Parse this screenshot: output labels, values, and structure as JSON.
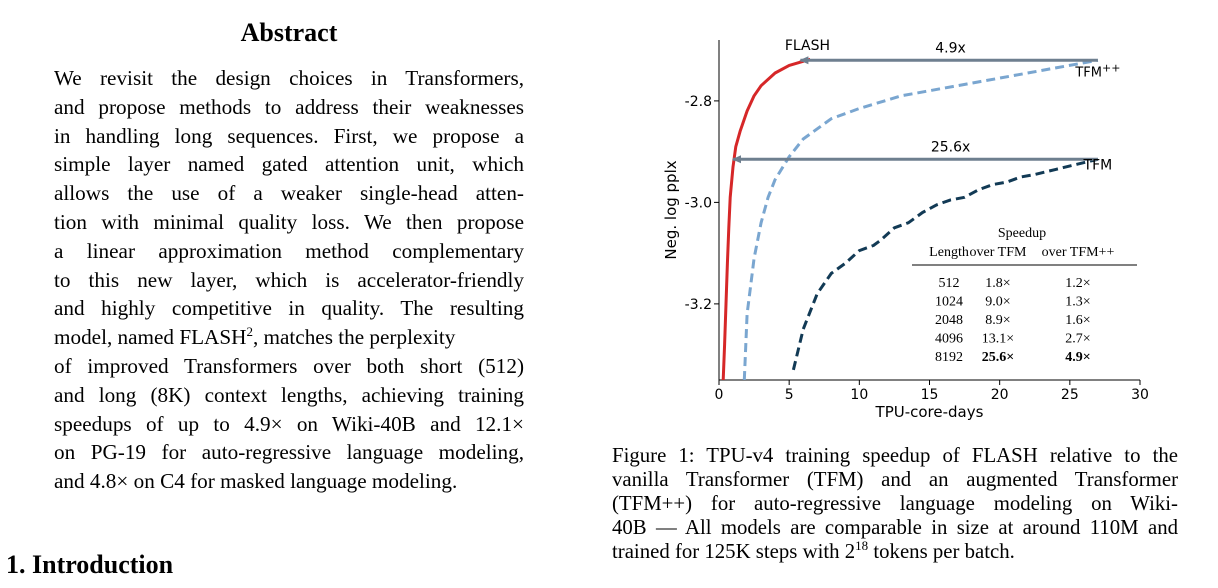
{
  "abstract": {
    "title": "Abstract",
    "lines": [
      "We revisit the design choices in Transformers,",
      "and propose methods to address their weaknesses",
      "in handling long sequences. First, we propose a",
      "simple layer named gated attention unit, which",
      "allows the use of a weaker single-head atten-",
      "tion with minimal quality loss. We then propose",
      "a linear approximation method complementary",
      "to this new layer, which is accelerator-friendly",
      "and highly competitive in quality. The resulting",
      "model, named FLASH",
      "of improved Transformers over both short (512)",
      "and long (8K) context lengths, achieving training",
      "speedups of up to 4.9× on Wiki-40B and 12.1×",
      "on PG-19 for auto-regressive language modeling,",
      "and 4.8× on C4 for masked language modeling."
    ],
    "line10_sup": "2",
    "line10_tail": ", matches the perplexity"
  },
  "introduction": {
    "heading": "1. Introduction"
  },
  "figure": {
    "caption_lines": [
      "Figure 1: TPU-v4 training speedup of FLASH relative to the",
      "vanilla Transformer (TFM) and an augmented Transformer",
      "(TFM++) for auto-regressive language modeling on Wiki-",
      "40B —  All models are comparable in size at around 110M and"
    ],
    "caption_last_pre": "trained for 125K steps with 2",
    "caption_last_sup": "18",
    "caption_last_post": " tokens per batch.",
    "speedup_table": {
      "group_header": "Speedup",
      "columns": [
        "Length",
        "over TFM",
        "over TFM++"
      ],
      "rows": [
        [
          "512",
          "1.8×",
          "1.2×"
        ],
        [
          "1024",
          "9.0×",
          "1.3×"
        ],
        [
          "2048",
          "8.9×",
          "1.6×"
        ],
        [
          "4096",
          "13.1×",
          "2.7×"
        ],
        [
          "8192",
          "25.6×",
          "4.9×"
        ]
      ],
      "bold_row": 4
    }
  },
  "chart_data": {
    "type": "line",
    "xlabel": "TPU-core-days",
    "ylabel": "Neg. log pplx",
    "xlim": [
      0,
      30
    ],
    "ylim": [
      -3.35,
      -2.68
    ],
    "xticks": [
      0,
      5,
      10,
      15,
      20,
      25,
      30
    ],
    "yticks": [
      -3.2,
      -3.0,
      -2.8
    ],
    "grid": false,
    "series": [
      {
        "name": "FLASH",
        "color": "#d62728",
        "style": "solid",
        "x": [
          0.3,
          0.4,
          0.5,
          0.6,
          0.7,
          0.8,
          1.0,
          1.2,
          1.5,
          2.0,
          2.5,
          3.0,
          4.0,
          5.0,
          6.0,
          6.5
        ],
        "y": [
          -3.35,
          -3.28,
          -3.2,
          -3.12,
          -3.05,
          -2.99,
          -2.93,
          -2.89,
          -2.86,
          -2.82,
          -2.79,
          -2.77,
          -2.745,
          -2.73,
          -2.722,
          -2.718
        ]
      },
      {
        "name": "TFM++",
        "color": "#7aa6d0",
        "style": "dashed",
        "x": [
          1.8,
          2.0,
          2.5,
          3.0,
          3.5,
          4.0,
          5.0,
          6.0,
          8.0,
          10.0,
          13.0,
          16.0,
          20.0,
          24.0,
          27.0
        ],
        "y": [
          -3.35,
          -3.22,
          -3.11,
          -3.04,
          -2.99,
          -2.955,
          -2.91,
          -2.875,
          -2.835,
          -2.815,
          -2.79,
          -2.775,
          -2.755,
          -2.735,
          -2.72
        ]
      },
      {
        "name": "TFM",
        "color": "#123a55",
        "style": "dashed",
        "x": [
          5.3,
          6.0,
          7.0,
          8.0,
          9.0,
          10.0,
          11.0,
          11.5,
          12.5,
          13.5,
          14.5,
          15.5,
          16.5,
          17.5,
          18.5,
          19.5,
          20.5,
          21.5,
          22.5,
          24.0,
          25.5,
          27.0
        ],
        "y": [
          -3.33,
          -3.25,
          -3.18,
          -3.14,
          -3.12,
          -3.095,
          -3.085,
          -3.075,
          -3.05,
          -3.04,
          -3.02,
          -3.005,
          -2.995,
          -2.99,
          -2.975,
          -2.965,
          -2.96,
          -2.95,
          -2.945,
          -2.935,
          -2.925,
          -2.915
        ]
      }
    ],
    "annotations": [
      {
        "text": "FLASH",
        "x": 6.3,
        "y": -2.7
      },
      {
        "text": "TFM++",
        "x": 27.0,
        "y": -2.74
      },
      {
        "text": "TFM",
        "x": 27.0,
        "y": -2.935
      },
      {
        "text": "4.9x",
        "x": 16.5,
        "y": -2.705
      },
      {
        "text": "25.6x",
        "x": 16.5,
        "y": -2.9
      }
    ],
    "arrows": [
      {
        "label": "4.9x",
        "from": [
          27.0,
          -2.72
        ],
        "to": [
          5.8,
          -2.72
        ]
      },
      {
        "label": "25.6x",
        "from": [
          27.0,
          -2.915
        ],
        "to": [
          1.0,
          -2.915
        ]
      }
    ]
  }
}
